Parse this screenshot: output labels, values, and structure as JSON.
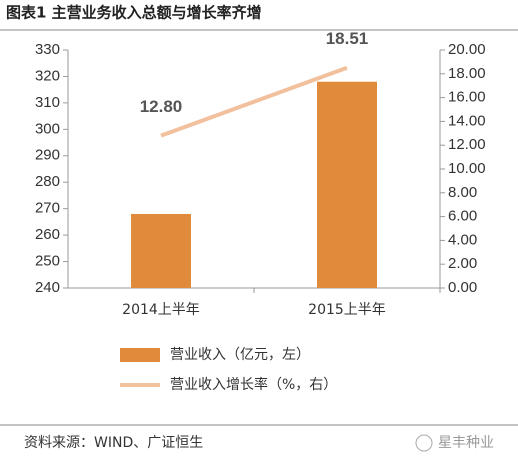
{
  "chart_data": {
    "type": "bar",
    "title": "图表1  主营业务收入总额与增长率齐增",
    "categories": [
      "2014上半年",
      "2015上半年"
    ],
    "series": [
      {
        "name": "营业收入（亿元，左）",
        "type": "bar",
        "color": "#e08a3c",
        "values": [
          268,
          318
        ]
      },
      {
        "name": "营业收入增长率（%，右）",
        "type": "line",
        "axis": "y2",
        "color": "#f2c09c",
        "values": [
          12.8,
          18.51
        ],
        "value_labels": [
          "12.80",
          "18.51"
        ]
      }
    ],
    "ylim": [
      240,
      330
    ],
    "yticks": [
      240,
      250,
      260,
      270,
      280,
      290,
      300,
      310,
      320,
      330
    ],
    "y2lim": [
      0,
      20
    ],
    "y2ticks": [
      {
        "value": 0,
        "label": "0.00"
      },
      {
        "value": 2,
        "label": "2.00"
      },
      {
        "value": 4,
        "label": "4.00"
      },
      {
        "value": 6,
        "label": "6.00"
      },
      {
        "value": 8,
        "label": "8.00"
      },
      {
        "value": 10,
        "label": "10.00"
      },
      {
        "value": 12,
        "label": "12.00"
      },
      {
        "value": 14,
        "label": "14.00"
      },
      {
        "value": 16,
        "label": "16.00"
      },
      {
        "value": 18,
        "label": "18.00"
      },
      {
        "value": 20,
        "label": "20.00"
      }
    ]
  },
  "source": "资料来源：WIND、广证恒生",
  "watermark": "星丰种业"
}
